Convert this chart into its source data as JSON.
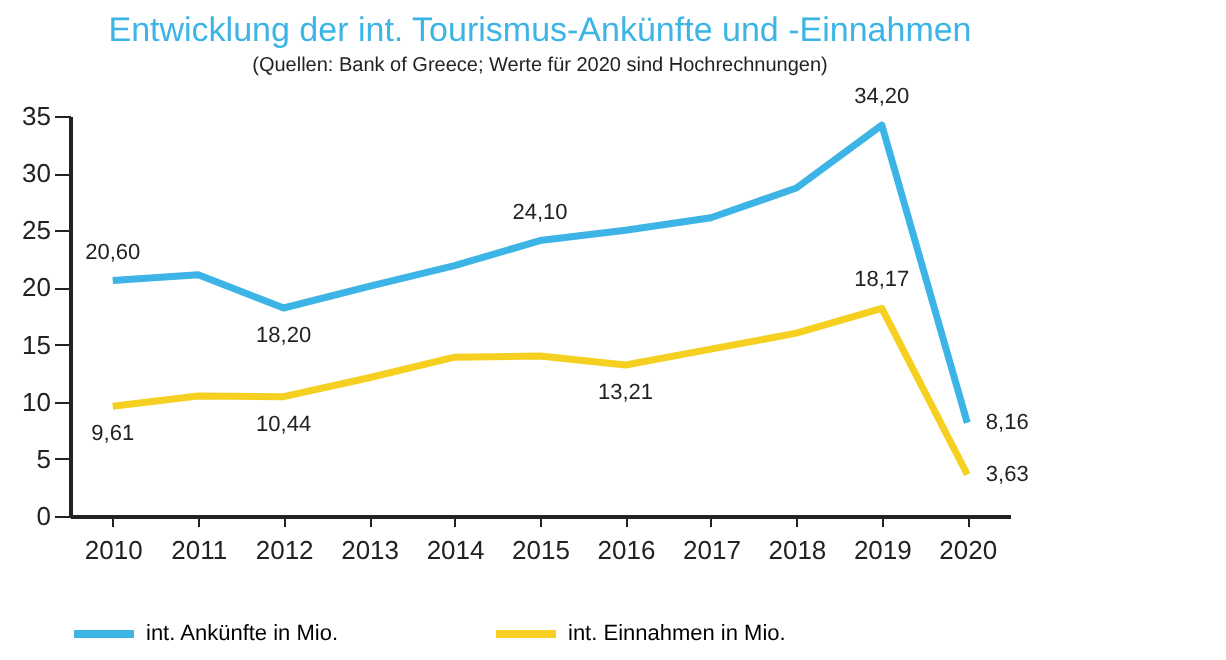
{
  "chart_data": {
    "type": "line",
    "title": "Entwicklung der int. Tourismus-Ankünfte und -Einnahmen",
    "subtitle": "(Quellen: Bank of Greece; Werte für 2020 sind Hochrechnungen)",
    "categories": [
      "2010",
      "2011",
      "2012",
      "2013",
      "2014",
      "2015",
      "2016",
      "2017",
      "2018",
      "2019",
      "2020"
    ],
    "series": [
      {
        "name": "int. Ankünfte in Mio.",
        "color": "#3cb4e6",
        "values": [
          20.6,
          21.1,
          18.2,
          20.1,
          21.9,
          24.1,
          25.0,
          26.1,
          28.7,
          34.2,
          8.16
        ],
        "value_labels": [
          "20,60",
          null,
          "18,20",
          null,
          null,
          "24,10",
          null,
          null,
          null,
          "34,20",
          "8,16"
        ]
      },
      {
        "name": "int. Einnahmen in Mio.",
        "color": "#f5d020",
        "values": [
          9.61,
          10.5,
          10.44,
          12.1,
          13.9,
          14.0,
          13.21,
          14.6,
          16.0,
          18.17,
          3.63
        ],
        "value_labels": [
          "9,61",
          null,
          "10,44",
          null,
          null,
          null,
          "13,21",
          null,
          null,
          "18,17",
          "3,63"
        ]
      }
    ],
    "ylim": [
      0,
      35
    ],
    "yticks": [
      0,
      5,
      10,
      15,
      20,
      25,
      30,
      35
    ],
    "grid": false,
    "legend": "bottom",
    "marker": "none",
    "line_style": "solid"
  }
}
